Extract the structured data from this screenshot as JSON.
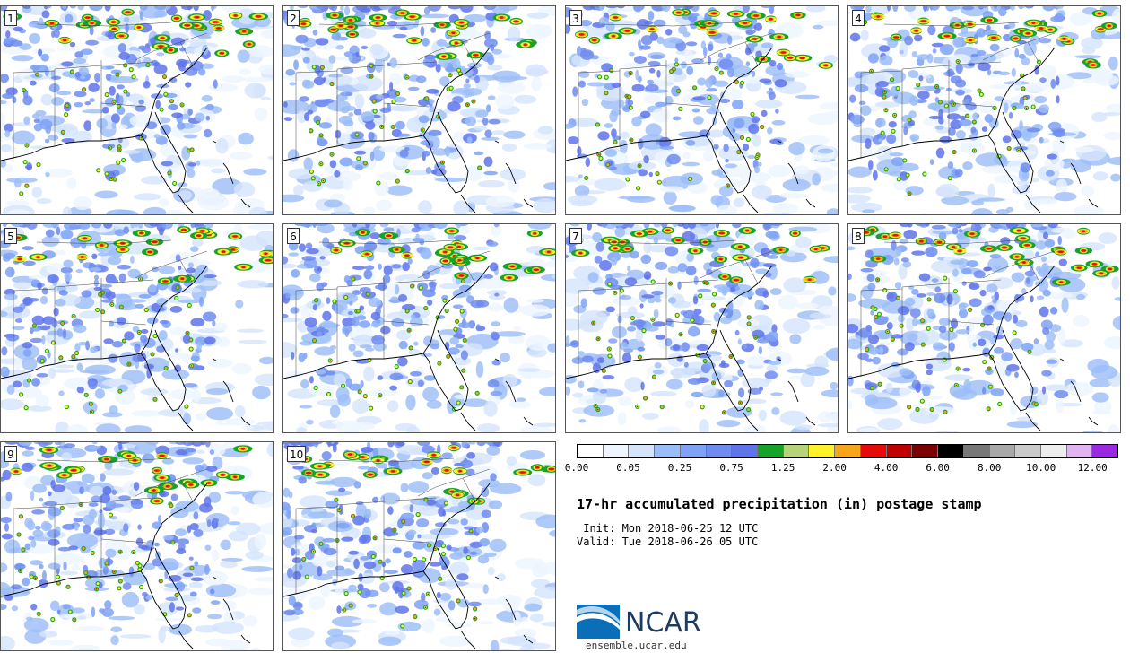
{
  "members": [
    {
      "label": "1"
    },
    {
      "label": "2"
    },
    {
      "label": "3"
    },
    {
      "label": "4"
    },
    {
      "label": "5"
    },
    {
      "label": "6"
    },
    {
      "label": "7"
    },
    {
      "label": "8"
    },
    {
      "label": "9"
    },
    {
      "label": "10"
    }
  ],
  "colorbar": {
    "colors": [
      "#ffffff",
      "#eef5ff",
      "#d5e3fb",
      "#9bbdf7",
      "#7fa2f5",
      "#6f8bf0",
      "#5f74ea",
      "#16a32c",
      "#b6d37a",
      "#fff22a",
      "#f7a51a",
      "#e60b0b",
      "#c00000",
      "#7d0000",
      "#000000",
      "#777777",
      "#a8a8a8",
      "#cacaca",
      "#ededed",
      "#e2b3f1",
      "#9a2ae1"
    ],
    "ticks": [
      "0.00",
      "0.05",
      "0.25",
      "0.75",
      "1.25",
      "2.00",
      "4.00",
      "6.00",
      "8.00",
      "10.00",
      "12.00"
    ]
  },
  "title": "17-hr accumulated precipitation (in) postage stamp",
  "init": " Init: Mon 2018-06-25 12 UTC",
  "valid": "Valid: Tue 2018-06-26 05 UTC",
  "logo": {
    "text": "NCAR",
    "site": "ensemble.ucar.edu",
    "color": "#1f3b5e",
    "swoosh_color": "#0a6fb8"
  }
}
